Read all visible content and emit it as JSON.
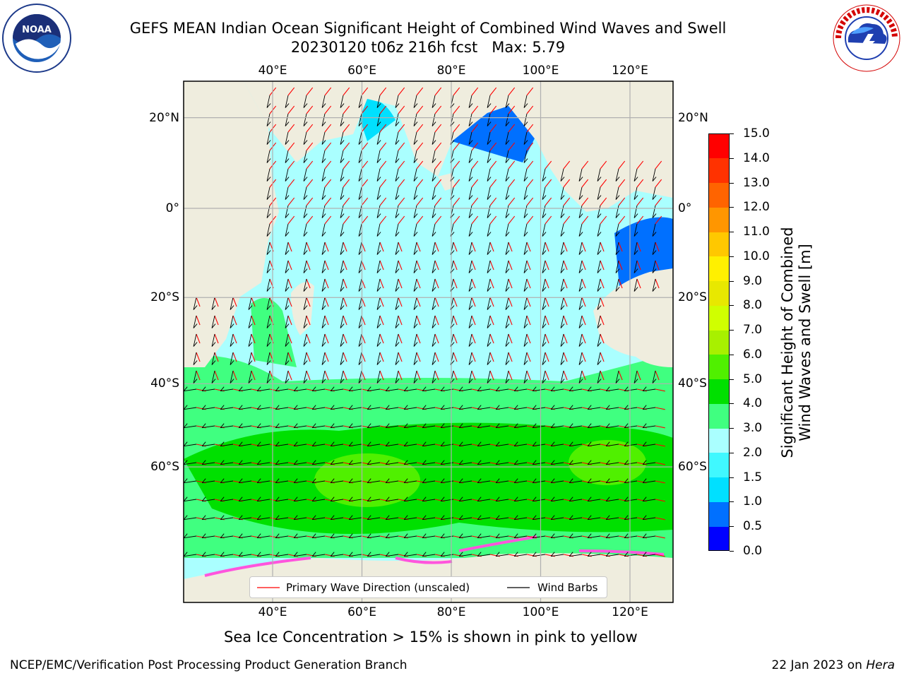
{
  "title": {
    "line1": "GEFS MEAN Indian Ocean Significant Height of Combined Wind Waves and Swell",
    "line2": "20230120 t06z 216h fcst   Max: 5.79"
  },
  "logos": {
    "noaa_text": "NOAA",
    "noaa_ring": "NATIONAL OCEANIC AND ATMOSPHERIC ADMINISTRATION · U.S. DEPARTMENT OF COMMERCE",
    "nws_ring": "NATIONAL WEATHER SERVICE"
  },
  "map": {
    "lon_ticks": [
      "40°E",
      "60°E",
      "80°E",
      "100°E",
      "120°E"
    ],
    "lat_ticks": [
      "20°N",
      "0°",
      "20°S",
      "40°S",
      "60°S"
    ],
    "colors": {
      "land": "#efedde",
      "ocean_low": "#aaffff",
      "grid": "#b0b0b0"
    }
  },
  "legend": {
    "wave_label": "Primary Wave Direction (unscaled)",
    "wind_label": "Wind Barbs",
    "wave_color": "#ff0000",
    "wind_color": "#000000"
  },
  "colorbar": {
    "label_line1": "Significant Height of Combined",
    "label_line2": "Wind Waves and Swell [m]",
    "ticks": [
      "0.0",
      "0.5",
      "1.0",
      "1.5",
      "2.0",
      "3.0",
      "4.0",
      "5.0",
      "6.0",
      "7.0",
      "8.0",
      "9.0",
      "10.0",
      "11.0",
      "12.0",
      "13.0",
      "14.0",
      "15.0"
    ],
    "colors": [
      "#0000ff",
      "#0070ff",
      "#00e0ff",
      "#40f8ff",
      "#aaffff",
      "#40ff80",
      "#00e000",
      "#50f000",
      "#a8f000",
      "#d0ff00",
      "#e8e800",
      "#fff000",
      "#ffc800",
      "#ff9600",
      "#ff6400",
      "#ff3200",
      "#ff0000"
    ]
  },
  "notes": {
    "sea_ice": "Sea Ice Concentration > 15% is shown in pink to yellow",
    "footer_left": "NCEP/EMC/Verification Post Processing Product Generation Branch",
    "footer_date": "22 Jan 2023 on ",
    "footer_machine": "Hera"
  }
}
